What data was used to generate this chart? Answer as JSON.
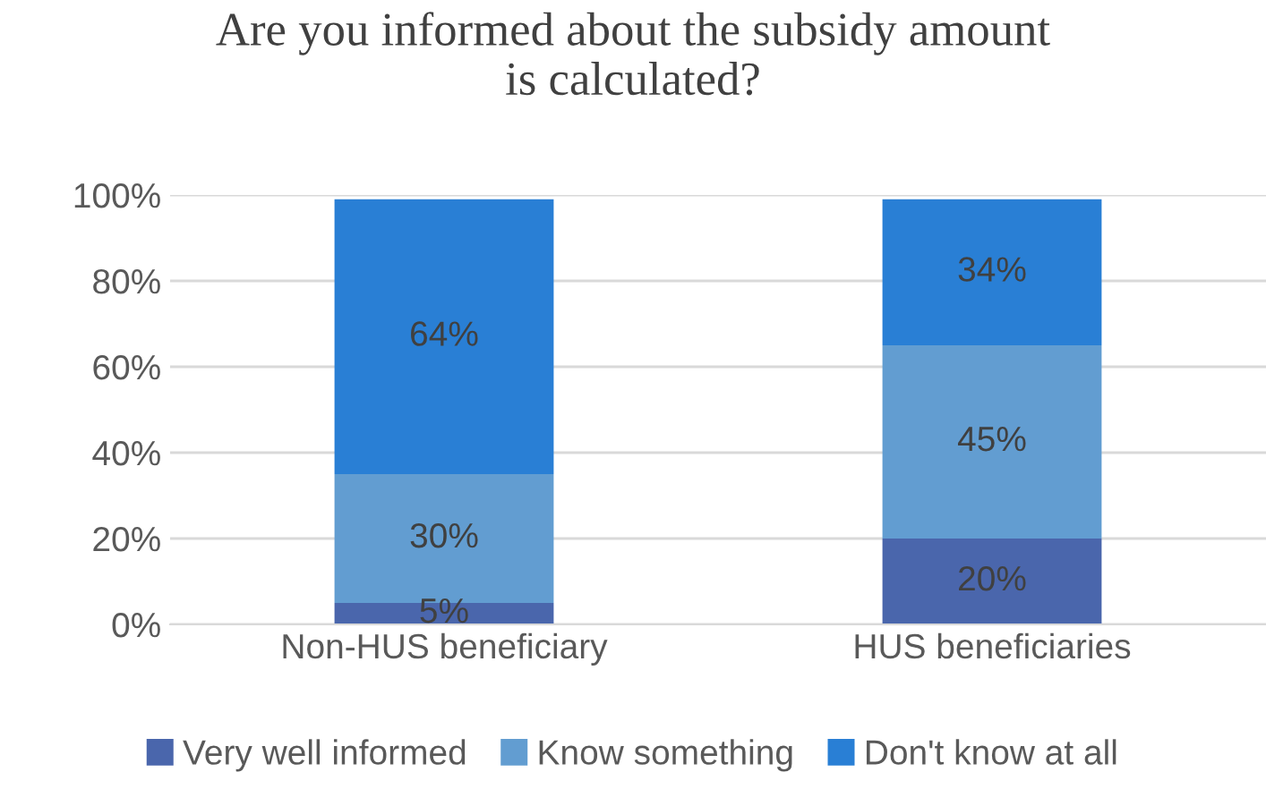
{
  "chart_data": {
    "type": "bar",
    "title": "Are you informed about the subsidy amount\nis calculated?",
    "stacked": true,
    "categories": [
      "Non-HUS beneficiary",
      "HUS beneficiaries"
    ],
    "series": [
      {
        "name": "Very well informed",
        "color": "#4a66ac",
        "values": [
          5,
          20
        ],
        "value_labels": [
          "5%",
          "20%"
        ]
      },
      {
        "name": "Know something",
        "color": "#629dd1",
        "values": [
          30,
          45
        ],
        "value_labels": [
          "30%",
          "45%"
        ]
      },
      {
        "name": "Don't know at all",
        "color": "#297fd5",
        "values": [
          64,
          34
        ],
        "value_labels": [
          "64%",
          "34%"
        ]
      }
    ],
    "ylim": [
      0,
      100
    ],
    "yticks": [
      {
        "value": 0,
        "label": "0%"
      },
      {
        "value": 20,
        "label": "20%"
      },
      {
        "value": 40,
        "label": "40%"
      },
      {
        "value": 60,
        "label": "60%"
      },
      {
        "value": 80,
        "label": "80%"
      },
      {
        "value": 100,
        "label": "100%"
      }
    ],
    "grid": "y",
    "legend": "bottom"
  }
}
